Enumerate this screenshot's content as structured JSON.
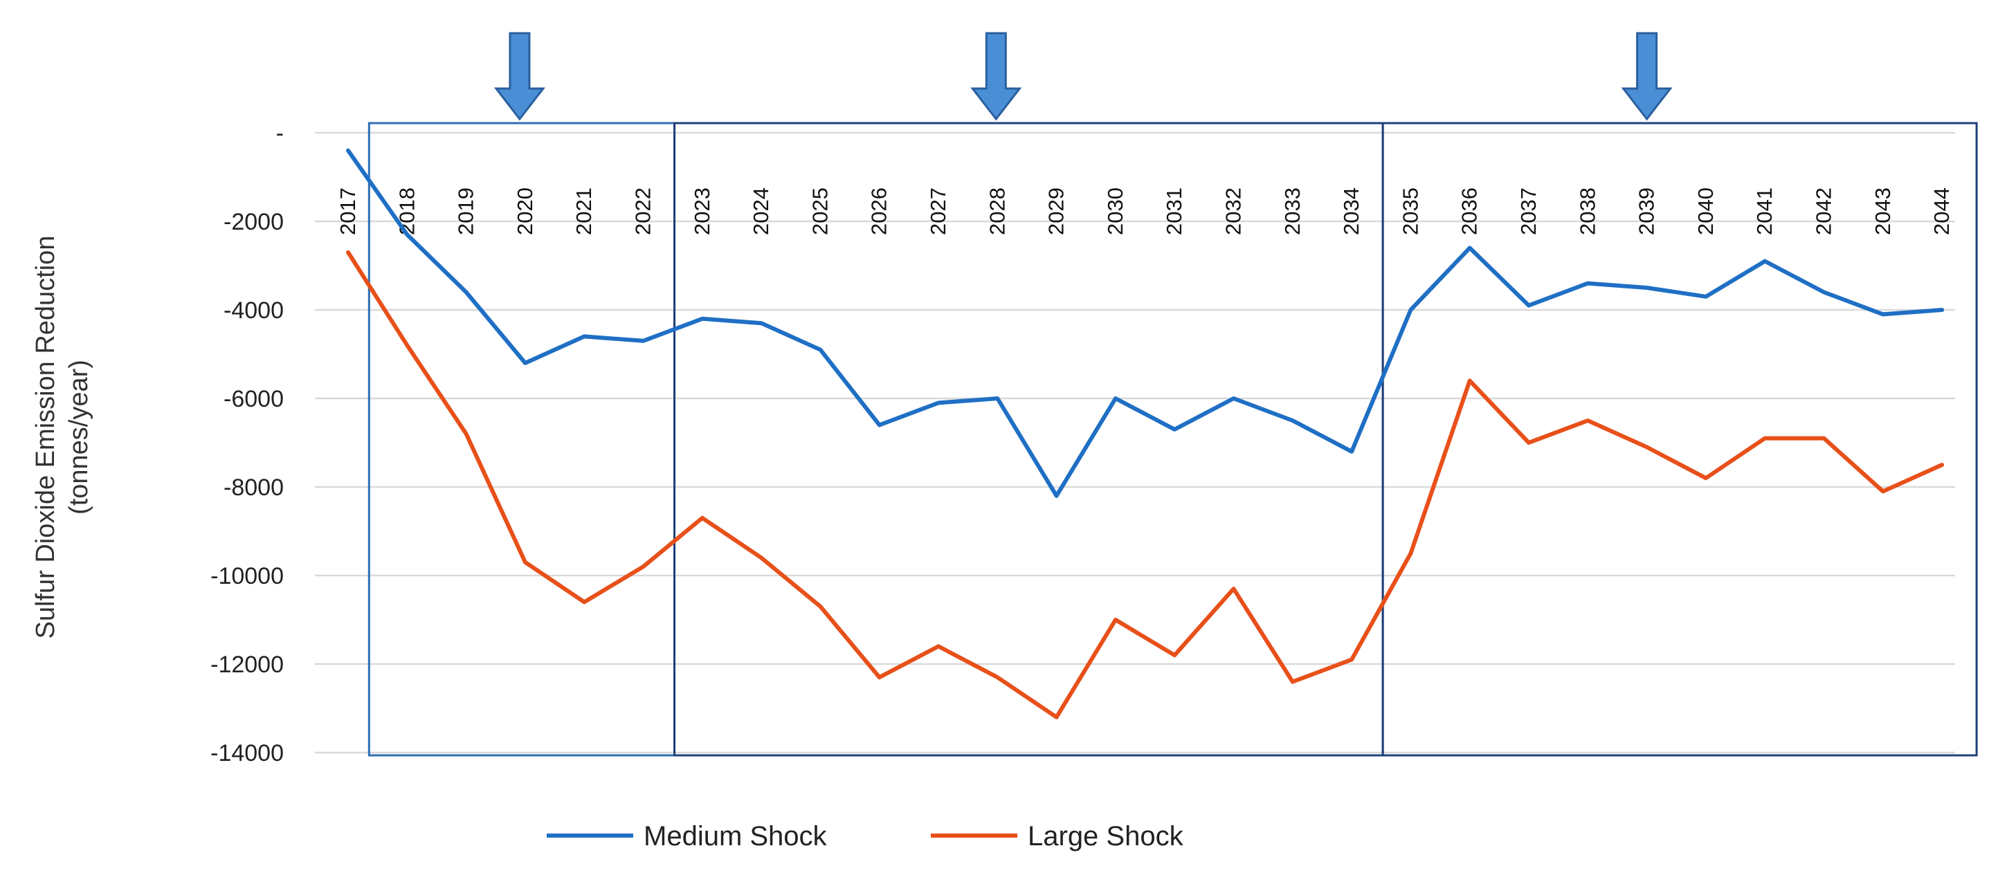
{
  "chart_data": {
    "type": "line",
    "title": "",
    "xlabel": "",
    "ylabel": "Sulfur Dioxide Emission Reduction",
    "ylabel_unit": "(tonnes/year)",
    "ylim": [
      -14000,
      0
    ],
    "y_ticks": [
      0,
      -2000,
      -4000,
      -6000,
      -8000,
      -10000,
      -12000,
      -14000
    ],
    "y_tick_labels": [
      "-",
      "-2000",
      "-4000",
      "-6000",
      "-8000",
      "-10000",
      "-12000",
      "-14000"
    ],
    "grid": true,
    "legend_position": "bottom",
    "x": [
      "2017",
      "2018",
      "2019",
      "2020",
      "2021",
      "2022",
      "2023",
      "2024",
      "2025",
      "2026",
      "2027",
      "2028",
      "2029",
      "2030",
      "2031",
      "2032",
      "2033",
      "2034",
      "2035",
      "2036",
      "2037",
      "2038",
      "2039",
      "2040",
      "2041",
      "2042",
      "2043",
      "2044"
    ],
    "series": [
      {
        "name": "Medium Shock",
        "color": "#1f6fc4",
        "values": [
          -400,
          -2300,
          -3600,
          -5200,
          -4600,
          -4700,
          -4200,
          -4300,
          -4900,
          -6600,
          -6100,
          -6000,
          -8200,
          -6000,
          -6700,
          -6000,
          -6500,
          -7200,
          -4000,
          -2600,
          -3900,
          -3400,
          -3500,
          -3700,
          -2900,
          -3600,
          -4100,
          -4000
        ]
      },
      {
        "name": "Large Shock",
        "color": "#e8501a",
        "values": [
          -2700,
          -4800,
          -6800,
          -9700,
          -10600,
          -9800,
          -8700,
          -9600,
          -10700,
          -12300,
          -11600,
          -12300,
          -13200,
          -11000,
          -11800,
          -10300,
          -12400,
          -11900,
          -9500,
          -5600,
          -7000,
          -6500,
          -7100,
          -7800,
          -6900,
          -6900,
          -8100,
          -7500
        ]
      }
    ],
    "period_boxes": [
      {
        "from": "2018",
        "to": "2022"
      },
      {
        "from": "2022",
        "to": "2034"
      },
      {
        "from": "2034",
        "to": "2044"
      }
    ],
    "arrows": [
      "2020",
      "2028",
      "2039"
    ],
    "arrow_color": "#4a8fd6"
  }
}
